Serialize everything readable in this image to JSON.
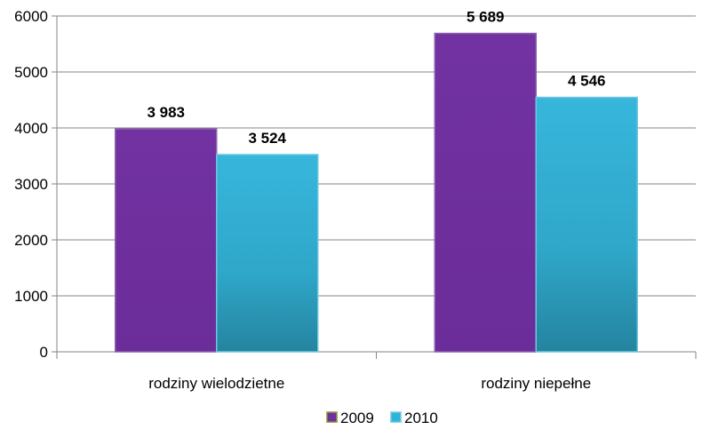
{
  "chart_data": {
    "type": "bar",
    "title": "",
    "xlabel": "",
    "ylabel": "",
    "categories": [
      "rodziny wielodzietne",
      "rodziny niepełne"
    ],
    "series": [
      {
        "name": "2009",
        "values": [
          3983,
          5689
        ],
        "labels": [
          "3 983",
          "5 689"
        ],
        "color": "#7030a0"
      },
      {
        "name": "2010",
        "values": [
          3524,
          4546
        ],
        "labels": [
          "3 524",
          "4 546"
        ],
        "color": "#2fb4d8"
      }
    ],
    "ylim": [
      0,
      6000
    ],
    "yticks": [
      "0",
      "1000",
      "2000",
      "3000",
      "4000",
      "5000",
      "6000"
    ],
    "grid": true,
    "legend": "bottom"
  }
}
